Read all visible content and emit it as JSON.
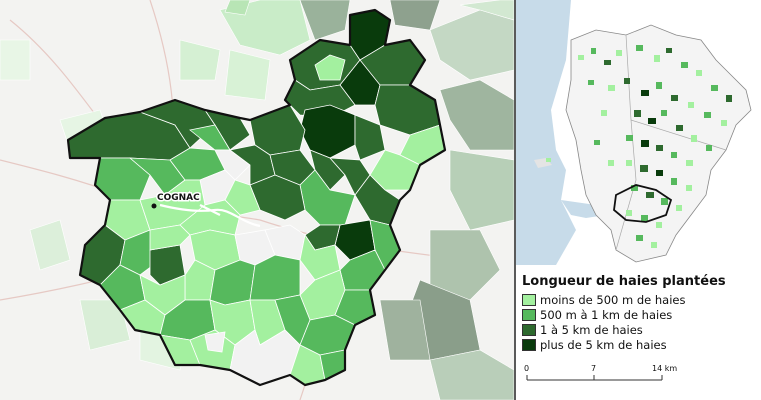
{
  "map": {
    "city_label": "COGNAC"
  },
  "legend": {
    "title": "Longueur de haies plantées",
    "items": [
      {
        "label": "moins de 500 m de haies",
        "color": "#a3f09f"
      },
      {
        "label": "500 m à 1 km de haies",
        "color": "#56b95d"
      },
      {
        "label": "1 à 5 km de haies",
        "color": "#2e6a2f"
      },
      {
        "label": "plus de 5 km de haies",
        "color": "#093b0c"
      }
    ]
  },
  "scale": {
    "ticks": [
      "0",
      "7",
      "14 km"
    ]
  },
  "colors": {
    "no_data": "#f2f2f2",
    "sea": "#c7dbe9",
    "outline": "#111111"
  }
}
